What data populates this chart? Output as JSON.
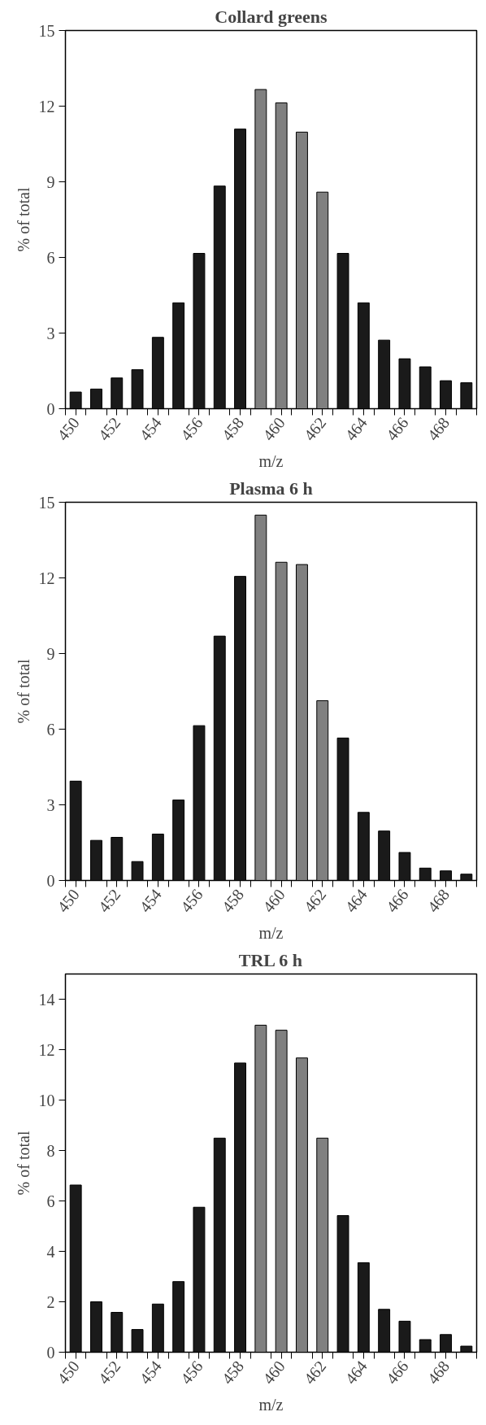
{
  "chart_data": [
    {
      "type": "bar",
      "title": "Collard greens",
      "xlabel": "m/z",
      "ylabel": "% of total",
      "x": [
        450,
        451,
        452,
        453,
        454,
        455,
        456,
        457,
        458,
        459,
        460,
        461,
        462,
        463,
        464,
        465,
        466,
        467,
        468,
        469
      ],
      "values": [
        0.66,
        0.78,
        1.22,
        1.55,
        2.83,
        4.2,
        6.16,
        8.83,
        11.09,
        12.66,
        12.13,
        10.97,
        8.59,
        6.16,
        4.2,
        2.72,
        1.98,
        1.66,
        1.11,
        1.03
      ],
      "colors": [
        "#1a1a1a",
        "#1a1a1a",
        "#1a1a1a",
        "#1a1a1a",
        "#1a1a1a",
        "#1a1a1a",
        "#1a1a1a",
        "#1a1a1a",
        "#1a1a1a",
        "#808080",
        "#808080",
        "#808080",
        "#808080",
        "#1a1a1a",
        "#1a1a1a",
        "#1a1a1a",
        "#1a1a1a",
        "#1a1a1a",
        "#1a1a1a",
        "#1a1a1a"
      ],
      "xlim": [
        449.5,
        469.5
      ],
      "ylim": [
        0,
        15
      ],
      "yticks": [
        0,
        3,
        6,
        9,
        12,
        15
      ],
      "xticks": [
        {
          "value": 449.5,
          "label": null
        },
        450,
        {
          "value": 450.5,
          "label": null
        },
        {
          "value": 451.5,
          "label": null
        },
        452,
        {
          "value": 452.5,
          "label": null
        },
        {
          "value": 453.5,
          "label": null
        },
        454,
        {
          "value": 454.5,
          "label": null
        },
        {
          "value": 455.5,
          "label": null
        },
        456,
        {
          "value": 456.5,
          "label": null
        },
        {
          "value": 457.5,
          "label": null
        },
        458,
        {
          "value": 458.5,
          "label": null
        },
        {
          "value": 459.5,
          "label": null
        },
        460,
        {
          "value": 460.5,
          "label": null
        },
        {
          "value": 461.5,
          "label": null
        },
        462,
        {
          "value": 462.5,
          "label": null
        },
        {
          "value": 463.5,
          "label": null
        },
        464,
        {
          "value": 464.5,
          "label": null
        },
        {
          "value": 465.5,
          "label": null
        },
        466,
        {
          "value": 466.5,
          "label": null
        },
        {
          "value": 467.5,
          "label": null
        },
        468,
        {
          "value": 468.5,
          "label": null
        },
        {
          "value": 469.5,
          "label": null
        }
      ],
      "grid": false
    },
    {
      "type": "bar",
      "title": "Plasma 6 h",
      "xlabel": "m/z",
      "ylabel": "% of total",
      "x": [
        450,
        451,
        452,
        453,
        454,
        455,
        456,
        457,
        458,
        459,
        460,
        461,
        462,
        463,
        464,
        465,
        466,
        467,
        468,
        469
      ],
      "values": [
        3.94,
        1.59,
        1.71,
        0.75,
        1.84,
        3.19,
        6.14,
        9.69,
        12.06,
        14.49,
        12.62,
        12.53,
        7.13,
        5.65,
        2.7,
        1.96,
        1.11,
        0.49,
        0.38,
        0.25
      ],
      "colors": [
        "#1a1a1a",
        "#1a1a1a",
        "#1a1a1a",
        "#1a1a1a",
        "#1a1a1a",
        "#1a1a1a",
        "#1a1a1a",
        "#1a1a1a",
        "#1a1a1a",
        "#808080",
        "#808080",
        "#808080",
        "#808080",
        "#1a1a1a",
        "#1a1a1a",
        "#1a1a1a",
        "#1a1a1a",
        "#1a1a1a",
        "#1a1a1a",
        "#1a1a1a"
      ],
      "xlim": [
        449.5,
        469.5
      ],
      "ylim": [
        0,
        15
      ],
      "yticks": [
        0,
        3,
        6,
        9,
        12,
        15
      ],
      "xticks": [
        {
          "value": 449.5,
          "label": null
        },
        450,
        {
          "value": 450.5,
          "label": null
        },
        {
          "value": 451.5,
          "label": null
        },
        452,
        {
          "value": 452.5,
          "label": null
        },
        {
          "value": 453.5,
          "label": null
        },
        454,
        {
          "value": 454.5,
          "label": null
        },
        {
          "value": 455.5,
          "label": null
        },
        456,
        {
          "value": 456.5,
          "label": null
        },
        {
          "value": 457.5,
          "label": null
        },
        458,
        {
          "value": 458.5,
          "label": null
        },
        {
          "value": 459.5,
          "label": null
        },
        460,
        {
          "value": 460.5,
          "label": null
        },
        {
          "value": 461.5,
          "label": null
        },
        462,
        {
          "value": 462.5,
          "label": null
        },
        {
          "value": 463.5,
          "label": null
        },
        464,
        {
          "value": 464.5,
          "label": null
        },
        {
          "value": 465.5,
          "label": null
        },
        466,
        {
          "value": 466.5,
          "label": null
        },
        {
          "value": 467.5,
          "label": null
        },
        468,
        {
          "value": 468.5,
          "label": null
        },
        {
          "value": 469.5,
          "label": null
        }
      ],
      "grid": false
    },
    {
      "type": "bar",
      "title": "TRL 6 h",
      "xlabel": "m/z",
      "ylabel": "% of total",
      "x": [
        450,
        451,
        452,
        453,
        454,
        455,
        456,
        457,
        458,
        459,
        460,
        461,
        462,
        463,
        464,
        465,
        466,
        467,
        468,
        469
      ],
      "values": [
        6.63,
        2.0,
        1.58,
        0.9,
        1.91,
        2.8,
        5.75,
        8.49,
        11.47,
        12.97,
        12.77,
        11.67,
        8.49,
        5.42,
        3.55,
        1.7,
        1.23,
        0.5,
        0.7,
        0.24
      ],
      "colors": [
        "#1a1a1a",
        "#1a1a1a",
        "#1a1a1a",
        "#1a1a1a",
        "#1a1a1a",
        "#1a1a1a",
        "#1a1a1a",
        "#1a1a1a",
        "#1a1a1a",
        "#808080",
        "#808080",
        "#808080",
        "#808080",
        "#1a1a1a",
        "#1a1a1a",
        "#1a1a1a",
        "#1a1a1a",
        "#1a1a1a",
        "#1a1a1a",
        "#1a1a1a"
      ],
      "xlim": [
        449.5,
        469.5
      ],
      "ylim": [
        0,
        15
      ],
      "yticks": [
        0,
        2,
        4,
        6,
        8,
        10,
        12,
        14
      ],
      "xticks": [
        {
          "value": 449.5,
          "label": null
        },
        450,
        {
          "value": 450.5,
          "label": null
        },
        {
          "value": 451.5,
          "label": null
        },
        452,
        {
          "value": 452.5,
          "label": null
        },
        {
          "value": 453.5,
          "label": null
        },
        454,
        {
          "value": 454.5,
          "label": null
        },
        {
          "value": 455.5,
          "label": null
        },
        456,
        {
          "value": 456.5,
          "label": null
        },
        {
          "value": 457.5,
          "label": null
        },
        458,
        {
          "value": 458.5,
          "label": null
        },
        {
          "value": 459.5,
          "label": null
        },
        460,
        {
          "value": 460.5,
          "label": null
        },
        {
          "value": 461.5,
          "label": null
        },
        462,
        {
          "value": 462.5,
          "label": null
        },
        {
          "value": 463.5,
          "label": null
        },
        464,
        {
          "value": 464.5,
          "label": null
        },
        {
          "value": 465.5,
          "label": null
        },
        466,
        {
          "value": 466.5,
          "label": null
        },
        {
          "value": 467.5,
          "label": null
        },
        468,
        {
          "value": 468.5,
          "label": null
        },
        {
          "value": 469.5,
          "label": null
        }
      ],
      "grid": false
    }
  ]
}
